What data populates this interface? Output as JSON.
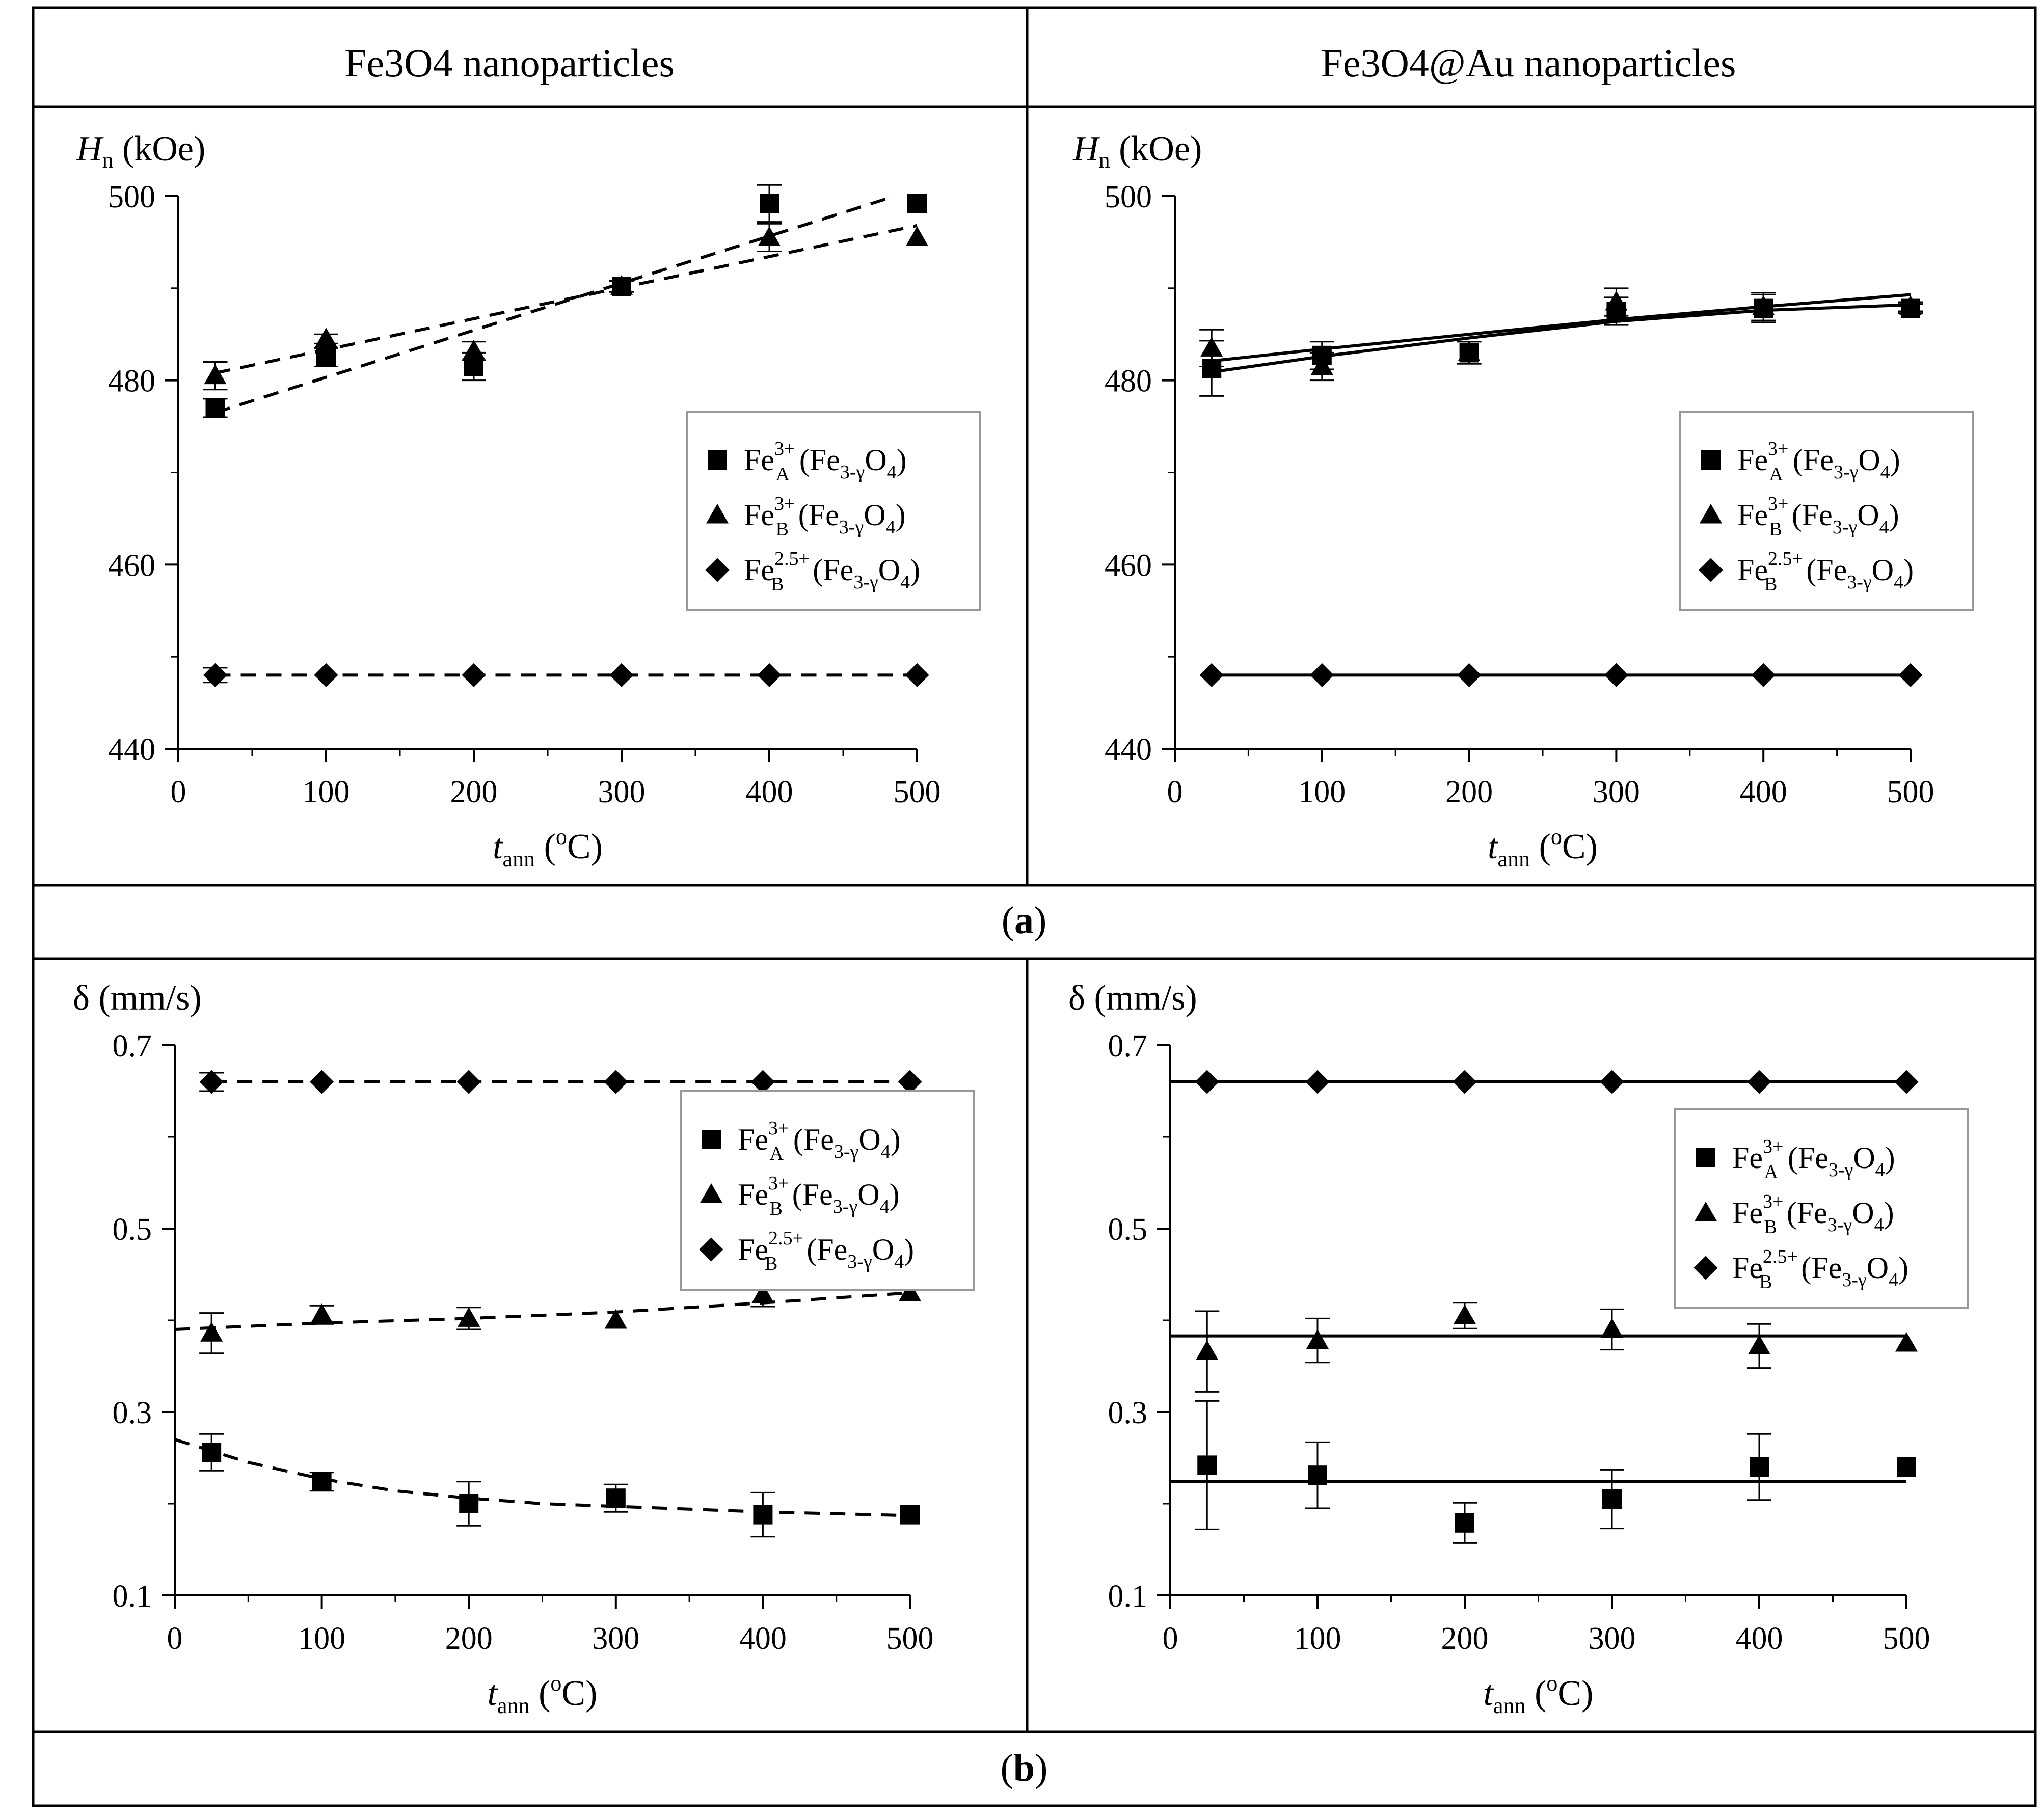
{
  "figure": {
    "columns": [
      "Fe3O4 nanoparticles",
      "Fe3O4@Au nanoparticles"
    ],
    "panel_labels": [
      "a",
      "b"
    ],
    "legend_entries": [
      "Fe3+A(Fe3-γO4)",
      "Fe3+B(Fe3-γO4)",
      "Fe2.5+B(Fe3-γO4)"
    ],
    "markers": [
      "square",
      "triangle",
      "diamond"
    ]
  },
  "chart_data": [
    {
      "id": "a-left",
      "type": "scatter",
      "row": "a",
      "column": "Fe3O4 nanoparticles",
      "ylabel": "Hn (kOe)",
      "xlabel": "tann (oC)",
      "xlim": [
        0,
        500
      ],
      "ylim": [
        440,
        500
      ],
      "xticks": [
        0,
        100,
        200,
        300,
        400,
        500
      ],
      "yticks": [
        440,
        460,
        480,
        500
      ],
      "fit_style": "dashed",
      "legend_position": "center-right",
      "series": [
        {
          "name": "Fe3+A(Fe3-γO4)",
          "marker": "square",
          "x": [
            25,
            100,
            200,
            300,
            400,
            500
          ],
          "y": [
            477,
            482.5,
            481.5,
            490.2,
            499.2,
            499.2
          ],
          "err": [
            1,
            1,
            1.5,
            0.6,
            2,
            0
          ],
          "fit": {
            "x": [
              25,
              485
            ],
            "y": [
              476.5,
              500
            ]
          }
        },
        {
          "name": "Fe3+B(Fe3-γO4)",
          "marker": "triangle",
          "x": [
            25,
            100,
            200,
            300,
            400,
            500
          ],
          "y": [
            480.5,
            484.5,
            483.2,
            490.2,
            495.5,
            495.5
          ],
          "err": [
            1.5,
            0.5,
            1,
            0.6,
            1.5,
            0
          ],
          "fit": {
            "x": [
              25,
              500
            ],
            "y": [
              480.8,
              496.8
            ]
          }
        },
        {
          "name": "Fe2.5+B(Fe3-γO4)",
          "marker": "diamond",
          "x": [
            25,
            100,
            200,
            300,
            400,
            500
          ],
          "y": [
            448,
            448,
            448,
            448,
            448,
            448
          ],
          "err": [
            0.8,
            0,
            0,
            0,
            0,
            0
          ],
          "fit": {
            "x": [
              25,
              500
            ],
            "y": [
              448,
              448
            ]
          }
        }
      ]
    },
    {
      "id": "a-right",
      "type": "scatter",
      "row": "a",
      "column": "Fe3O4@Au nanoparticles",
      "ylabel": "Hn (kOe)",
      "xlabel": "tann (oC)",
      "xlim": [
        0,
        500
      ],
      "ylim": [
        440,
        500
      ],
      "xticks": [
        0,
        100,
        200,
        300,
        400,
        500
      ],
      "yticks": [
        440,
        460,
        480,
        500
      ],
      "fit_style": "solid",
      "legend_position": "center-right",
      "series": [
        {
          "name": "Fe3+A(Fe3-γO4)",
          "marker": "square",
          "x": [
            25,
            100,
            200,
            300,
            400,
            500
          ],
          "y": [
            481.3,
            482.7,
            483,
            487.5,
            487.8,
            487.8
          ],
          "err": [
            3,
            1.5,
            1.2,
            1.5,
            1.5,
            0.5
          ],
          "fit": {
            "x": [
              25,
              100,
              200,
              300,
              400,
              500
            ],
            "y": [
              480.9,
              482.6,
              484.6,
              486.4,
              487.6,
              488.2
            ]
          }
        },
        {
          "name": "Fe3+B(Fe3-γO4)",
          "marker": "triangle",
          "x": [
            25,
            100,
            200,
            300,
            400,
            500
          ],
          "y": [
            483.5,
            481.5,
            483,
            488.5,
            488,
            488
          ],
          "err": [
            2,
            1.5,
            1.2,
            1.5,
            1.5,
            0.5
          ],
          "fit": {
            "x": [
              25,
              100,
              200,
              300,
              400,
              500
            ],
            "y": [
              482.1,
              483.4,
              485,
              486.6,
              488,
              489.3
            ]
          }
        },
        {
          "name": "Fe2.5+B(Fe3-γO4)",
          "marker": "diamond",
          "x": [
            25,
            100,
            200,
            300,
            400,
            500
          ],
          "y": [
            448,
            448,
            448,
            448,
            448,
            448
          ],
          "err": [
            0,
            0,
            0,
            0,
            0,
            0
          ],
          "fit": {
            "x": [
              25,
              500
            ],
            "y": [
              448,
              448
            ]
          }
        }
      ]
    },
    {
      "id": "b-left",
      "type": "scatter",
      "row": "b",
      "column": "Fe3O4 nanoparticles",
      "ylabel": "δ (mm/s)",
      "xlabel": "tann (oC)",
      "xlim": [
        0,
        500
      ],
      "ylim": [
        0.1,
        0.7
      ],
      "xticks": [
        0,
        100,
        200,
        300,
        400,
        500
      ],
      "yticks": [
        0.1,
        0.3,
        0.5,
        0.7
      ],
      "fit_style": "dashed",
      "legend_position": "top-right",
      "series": [
        {
          "name": "Fe3+A(Fe3-γO4)",
          "marker": "square",
          "x": [
            25,
            100,
            200,
            300,
            400,
            500
          ],
          "y": [
            0.256,
            0.224,
            0.2,
            0.206,
            0.188,
            0.188
          ],
          "err": [
            0.02,
            0.01,
            0.024,
            0.015,
            0.024,
            0
          ],
          "fit": {
            "x": [
              0,
              50,
              100,
              150,
              200,
              250,
              300,
              350,
              400,
              450,
              500
            ],
            "y": [
              0.27,
              0.245,
              0.227,
              0.214,
              0.206,
              0.2,
              0.197,
              0.194,
              0.191,
              0.189,
              0.187
            ]
          }
        },
        {
          "name": "Fe3+B(Fe3-γO4)",
          "marker": "triangle",
          "x": [
            25,
            100,
            200,
            300,
            400,
            500
          ],
          "y": [
            0.386,
            0.406,
            0.402,
            0.4,
            0.428,
            0.43
          ],
          "err": [
            0.022,
            0.01,
            0.012,
            0,
            0.013,
            0
          ],
          "fit": {
            "x": [
              0,
              100,
              200,
              300,
              400,
              500
            ],
            "y": [
              0.39,
              0.397,
              0.402,
              0.409,
              0.419,
              0.43
            ]
          }
        },
        {
          "name": "Fe2.5+B(Fe3-γO4)",
          "marker": "diamond",
          "x": [
            25,
            100,
            200,
            300,
            400,
            500
          ],
          "y": [
            0.66,
            0.66,
            0.66,
            0.66,
            0.66,
            0.66
          ],
          "err": [
            0.01,
            0,
            0,
            0,
            0,
            0
          ],
          "fit": {
            "x": [
              25,
              500
            ],
            "y": [
              0.66,
              0.66
            ]
          }
        }
      ]
    },
    {
      "id": "b-right",
      "type": "scatter",
      "row": "b",
      "column": "Fe3O4@Au nanoparticles",
      "ylabel": "δ (mm/s)",
      "xlabel": "tann (oC)",
      "xlim": [
        0,
        500
      ],
      "ylim": [
        0.1,
        0.7
      ],
      "xticks": [
        0,
        100,
        200,
        300,
        400,
        500
      ],
      "yticks": [
        0.1,
        0.3,
        0.5,
        0.7
      ],
      "fit_style": "solid",
      "legend_position": "top-right",
      "series": [
        {
          "name": "Fe3+A(Fe3-γO4)",
          "marker": "square",
          "x": [
            25,
            100,
            200,
            300,
            400,
            500
          ],
          "y": [
            0.242,
            0.231,
            0.179,
            0.205,
            0.24,
            0.24
          ],
          "err": [
            0.07,
            0.036,
            0.022,
            0.032,
            0.036,
            0
          ],
          "fit": {
            "x": [
              0,
              500
            ],
            "y": [
              0.224,
              0.224
            ]
          }
        },
        {
          "name": "Fe3+B(Fe3-γO4)",
          "marker": "triangle",
          "x": [
            25,
            100,
            200,
            300,
            400,
            500
          ],
          "y": [
            0.366,
            0.378,
            0.405,
            0.39,
            0.372,
            0.375
          ],
          "err": [
            0.044,
            0.024,
            0.014,
            0.022,
            0.024,
            0
          ],
          "fit": {
            "x": [
              0,
              500
            ],
            "y": [
              0.383,
              0.383
            ]
          }
        },
        {
          "name": "Fe2.5+B(Fe3-γO4)",
          "marker": "diamond",
          "x": [
            25,
            100,
            200,
            300,
            400,
            500
          ],
          "y": [
            0.66,
            0.66,
            0.66,
            0.66,
            0.66,
            0.66
          ],
          "err": [
            0,
            0,
            0,
            0,
            0,
            0
          ],
          "fit": {
            "x": [
              0,
              500
            ],
            "y": [
              0.66,
              0.66
            ]
          }
        }
      ]
    }
  ]
}
